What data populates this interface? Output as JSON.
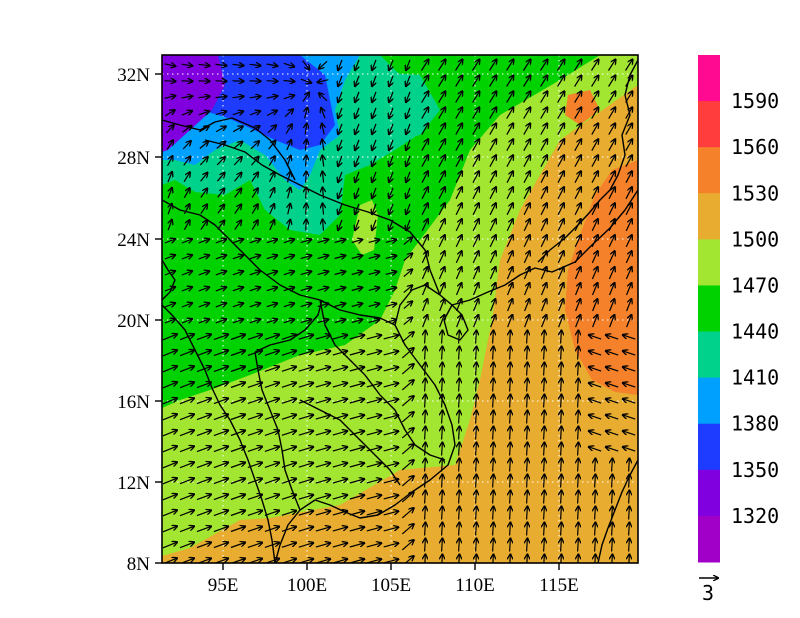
{
  "map": {
    "lat_ticks": [
      "32N",
      "28N",
      "24N",
      "20N",
      "16N",
      "12N",
      "8N"
    ],
    "lon_ticks": [
      "95E",
      "100E",
      "105E",
      "110E",
      "115E"
    ],
    "lon_range": [
      91.5,
      119.5
    ],
    "lat_range": [
      8,
      33
    ],
    "graticule": "dotted"
  },
  "colorbar": {
    "labels": [
      "1590",
      "1560",
      "1530",
      "1500",
      "1470",
      "1440",
      "1410",
      "1380",
      "1350",
      "1320"
    ],
    "colors": [
      "#ff0a90",
      "#ff3d3d",
      "#f5822a",
      "#e8ac30",
      "#a2e632",
      "#00d200",
      "#00d28c",
      "#00a0ff",
      "#1e3cff",
      "#8000e0",
      "#a000c8"
    ]
  },
  "vector_reference": {
    "label": "3"
  }
}
